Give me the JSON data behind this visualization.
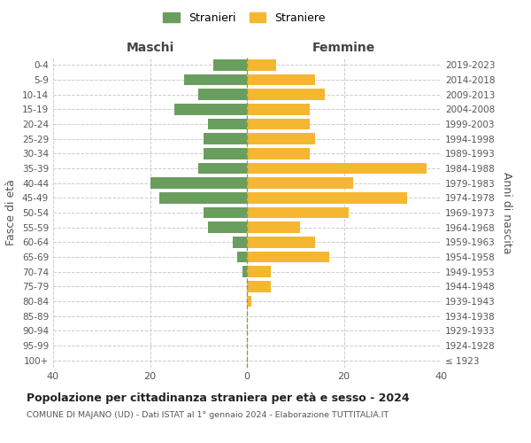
{
  "age_groups": [
    "100+",
    "95-99",
    "90-94",
    "85-89",
    "80-84",
    "75-79",
    "70-74",
    "65-69",
    "60-64",
    "55-59",
    "50-54",
    "45-49",
    "40-44",
    "35-39",
    "30-34",
    "25-29",
    "20-24",
    "15-19",
    "10-14",
    "5-9",
    "0-4"
  ],
  "birth_years": [
    "≤ 1923",
    "1924-1928",
    "1929-1933",
    "1934-1938",
    "1939-1943",
    "1944-1948",
    "1949-1953",
    "1954-1958",
    "1959-1963",
    "1964-1968",
    "1969-1973",
    "1974-1978",
    "1979-1983",
    "1984-1988",
    "1989-1993",
    "1994-1998",
    "1999-2003",
    "2004-2008",
    "2009-2013",
    "2014-2018",
    "2019-2023"
  ],
  "maschi": [
    0,
    0,
    0,
    0,
    0,
    0,
    1,
    2,
    3,
    8,
    9,
    18,
    20,
    10,
    9,
    9,
    8,
    15,
    10,
    13,
    7
  ],
  "femmine": [
    0,
    0,
    0,
    0,
    1,
    5,
    5,
    17,
    14,
    11,
    21,
    33,
    22,
    37,
    13,
    14,
    13,
    13,
    16,
    14,
    6
  ],
  "maschi_color": "#6a9e5e",
  "femmine_color": "#f5b731",
  "background_color": "#ffffff",
  "grid_color": "#cccccc",
  "title": "Popolazione per cittadinanza straniera per età e sesso - 2024",
  "subtitle": "COMUNE DI MAJANO (UD) - Dati ISTAT al 1° gennaio 2024 - Elaborazione TUTTITALIA.IT",
  "ylabel_left": "Fasce di età",
  "ylabel_right": "Anni di nascita",
  "xlabel_left": "Maschi",
  "xlabel_top_right": "Femmine",
  "legend_maschi": "Stranieri",
  "legend_femmine": "Straniere",
  "xlim": 40,
  "bar_height": 0.75
}
